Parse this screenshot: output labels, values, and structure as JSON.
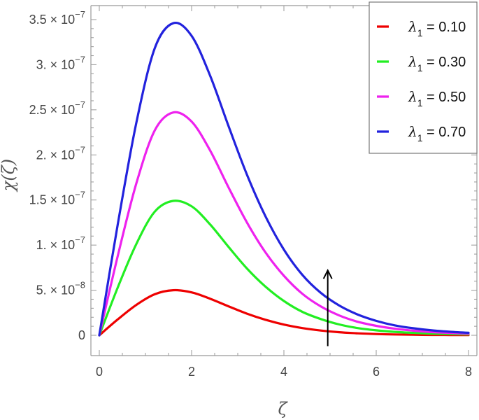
{
  "chart_data": {
    "type": "line",
    "x_tick_labels": [
      "0",
      "2",
      "4",
      "6",
      "8"
    ],
    "x_ticks": [
      0,
      2,
      4,
      6,
      8
    ],
    "y_tick_labels": [
      {
        "mantissa": "0",
        "exponent": ""
      },
      {
        "mantissa": "5. × 10",
        "exponent": "−8"
      },
      {
        "mantissa": "1. × 10",
        "exponent": "−7"
      },
      {
        "mantissa": "1.5 × 10",
        "exponent": "−7"
      },
      {
        "mantissa": "2. × 10",
        "exponent": "−7"
      },
      {
        "mantissa": "2.5 × 10",
        "exponent": "−7"
      },
      {
        "mantissa": "3. × 10",
        "exponent": "−7"
      },
      {
        "mantissa": "3.5 × 10",
        "exponent": "−7"
      }
    ],
    "y_ticks": [
      0,
      5e-08,
      1e-07,
      1.5e-07,
      2e-07,
      2.5e-07,
      3e-07,
      3.5e-07
    ],
    "xlabel": "ζ",
    "ylabel": "χ(ζ)",
    "xlim": [
      0,
      8
    ],
    "ylim": [
      0,
      3.5e-07
    ],
    "x": [
      0,
      0.4,
      0.8,
      1.2,
      1.6,
      2.0,
      2.4,
      2.8,
      3.2,
      3.6,
      4.0,
      4.4,
      4.8,
      5.2,
      5.6,
      6.0,
      6.4,
      6.8,
      7.2,
      7.6,
      8.0
    ],
    "series": [
      {
        "name": "λ1 = 0.10",
        "greek": "λ",
        "subscript": "1",
        "value_text": " = 0.10",
        "color": "#ee0000",
        "values": [
          0,
          1.76e-08,
          3.36e-08,
          4.55e-08,
          5e-08,
          4.76e-08,
          4.06e-08,
          3.21e-08,
          2.4e-08,
          1.72e-08,
          1.19e-08,
          8e-09,
          5.3e-09,
          3.4e-09,
          2.2e-09,
          1.4e-09,
          9e-10,
          6e-10,
          4e-10,
          3e-10,
          2e-10
        ]
      },
      {
        "name": "λ1 = 0.30",
        "greek": "λ",
        "subscript": "1",
        "value_text": " = 0.30",
        "color": "#22ee22",
        "values": [
          0,
          5.3e-08,
          1.01e-07,
          1.37e-07,
          1.49e-07,
          1.43e-07,
          1.23e-07,
          9.8e-08,
          7.4e-08,
          5.4e-08,
          3.8e-08,
          2.6e-08,
          1.8e-08,
          1.2e-08,
          8e-09,
          5.5e-09,
          3.8e-09,
          2.7e-09,
          1.9e-09,
          1.4e-09,
          1e-09
        ]
      },
      {
        "name": "λ1 = 0.50",
        "greek": "λ",
        "subscript": "1",
        "value_text": " = 0.50",
        "color": "#ee22ee",
        "values": [
          0,
          8.8e-08,
          1.68e-07,
          2.27e-07,
          2.47e-07,
          2.37e-07,
          2.05e-07,
          1.64e-07,
          1.25e-07,
          9.2e-08,
          6.6e-08,
          4.6e-08,
          3.2e-08,
          2.2e-08,
          1.5e-08,
          1.05e-08,
          7.3e-09,
          5.1e-09,
          3.6e-09,
          2.6e-09,
          1.9e-09
        ]
      },
      {
        "name": "λ1 = 0.70",
        "greek": "λ",
        "subscript": "1",
        "value_text": " = 0.70",
        "color": "#2222dd",
        "values": [
          0,
          1.23e-07,
          2.35e-07,
          3.18e-07,
          3.46e-07,
          3.32e-07,
          2.88e-07,
          2.32e-07,
          1.78e-07,
          1.32e-07,
          9.5e-08,
          6.7e-08,
          4.7e-08,
          3.3e-08,
          2.3e-08,
          1.6e-08,
          1.1e-08,
          7.8e-09,
          5.5e-09,
          3.9e-09,
          2.8e-09
        ]
      }
    ],
    "annotation_arrow": {
      "x": 4.95,
      "y_from": -1.2e-08,
      "y_to": 7.2e-08,
      "color": "#000000"
    },
    "legend_position": "top-right",
    "grid": false
  }
}
